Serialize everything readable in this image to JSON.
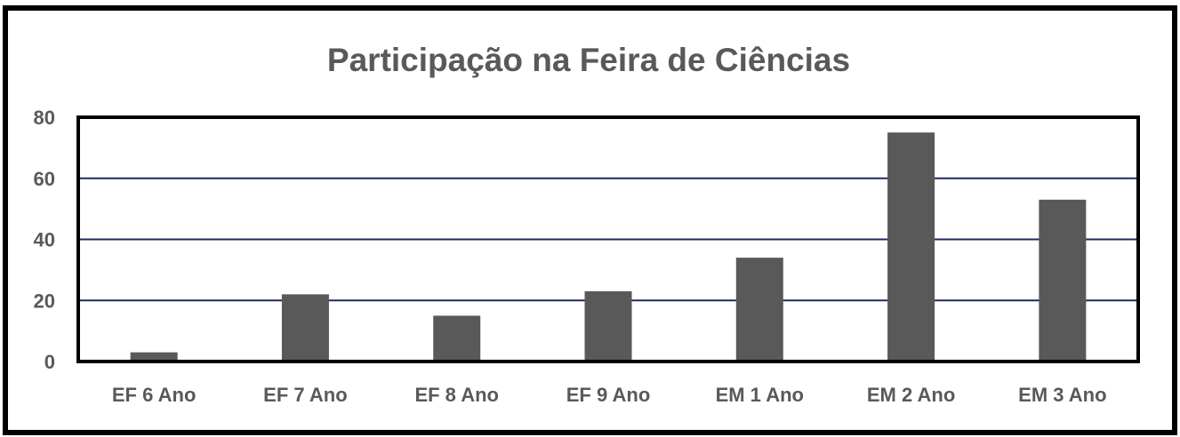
{
  "chart_data": {
    "type": "bar",
    "title": "Participação na Feira de Ciências",
    "categories": [
      "EF 6 Ano",
      "EF 7 Ano",
      "EF 8 Ano",
      "EF 9 Ano",
      "EM 1 Ano",
      "EM 2 Ano",
      "EM 3 Ano"
    ],
    "values": [
      3,
      22,
      15,
      23,
      34,
      75,
      53
    ],
    "ylim": [
      0,
      80
    ],
    "yticks": [
      0,
      20,
      40,
      60,
      80
    ],
    "xlabel": "",
    "ylabel": "",
    "grid": true,
    "bar_color": "#595959",
    "grid_color": "#1f2a5c"
  }
}
